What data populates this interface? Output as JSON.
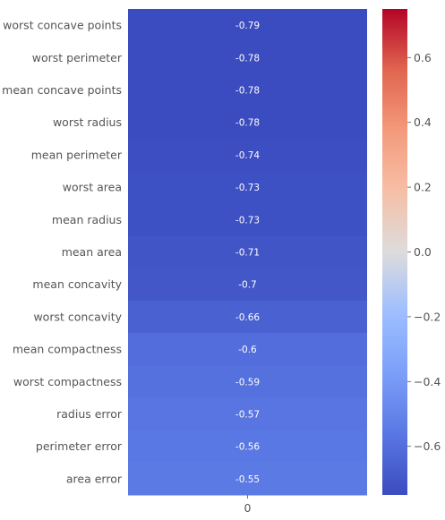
{
  "chart_data": {
    "type": "heatmap",
    "title": "",
    "xlabel": "",
    "ylabel": "",
    "x_categories": [
      "0"
    ],
    "rows": [
      {
        "label": "worst concave points",
        "value": -0.79,
        "text": "-0.79"
      },
      {
        "label": "worst perimeter",
        "value": -0.78,
        "text": "-0.78"
      },
      {
        "label": "mean concave points",
        "value": -0.78,
        "text": "-0.78"
      },
      {
        "label": "worst radius",
        "value": -0.78,
        "text": "-0.78"
      },
      {
        "label": "mean perimeter",
        "value": -0.74,
        "text": "-0.74"
      },
      {
        "label": "worst area",
        "value": -0.73,
        "text": "-0.73"
      },
      {
        "label": "mean radius",
        "value": -0.73,
        "text": "-0.73"
      },
      {
        "label": "mean area",
        "value": -0.71,
        "text": "-0.71"
      },
      {
        "label": "mean concavity",
        "value": -0.7,
        "text": "-0.7"
      },
      {
        "label": "worst concavity",
        "value": -0.66,
        "text": "-0.66"
      },
      {
        "label": "mean compactness",
        "value": -0.6,
        "text": "-0.6"
      },
      {
        "label": "worst compactness",
        "value": -0.59,
        "text": "-0.59"
      },
      {
        "label": "radius error",
        "value": -0.57,
        "text": "-0.57"
      },
      {
        "label": "perimeter error",
        "value": -0.56,
        "text": "-0.56"
      },
      {
        "label": "area error",
        "value": -0.55,
        "text": "-0.55"
      }
    ],
    "colormap": "coolwarm",
    "colorbar": {
      "range": [
        -0.75,
        0.75
      ],
      "ticks": [
        {
          "value": 0.6,
          "label": "0.6"
        },
        {
          "value": 0.4,
          "label": "0.4"
        },
        {
          "value": 0.2,
          "label": "0.2"
        },
        {
          "value": 0.0,
          "label": "0.0"
        },
        {
          "value": -0.2,
          "label": "−0.2"
        },
        {
          "value": -0.4,
          "label": "−0.4"
        },
        {
          "value": -0.6,
          "label": "−0.6"
        }
      ]
    }
  }
}
